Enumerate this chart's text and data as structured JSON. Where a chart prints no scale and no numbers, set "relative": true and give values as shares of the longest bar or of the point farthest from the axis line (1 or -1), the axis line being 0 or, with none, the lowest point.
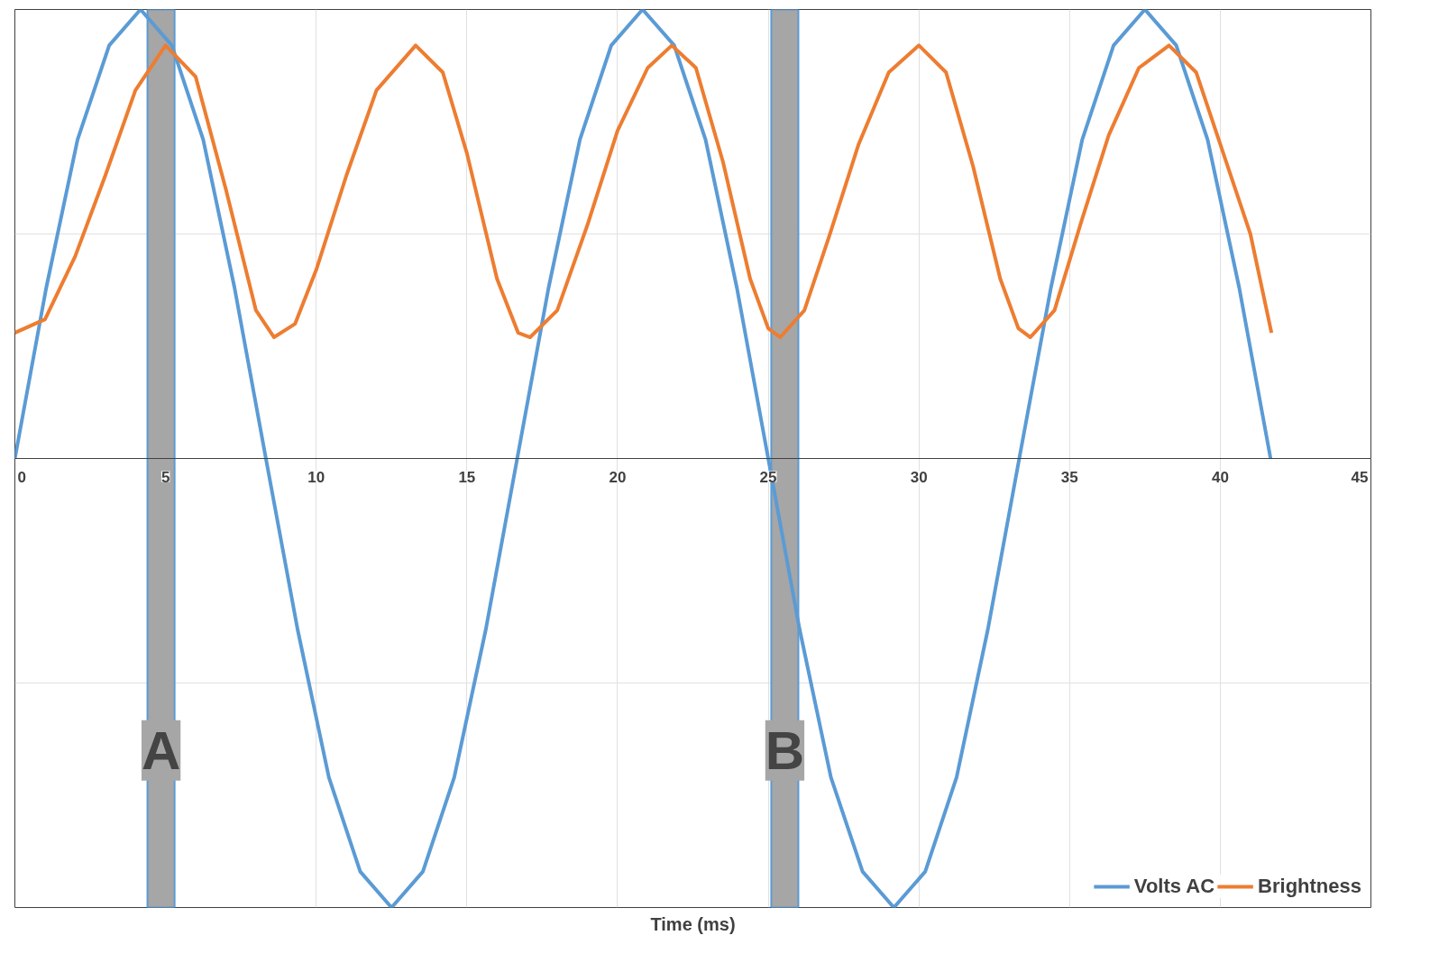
{
  "chart_data": {
    "type": "line",
    "relative": true,
    "xlabel": "Time (ms)",
    "xlim": [
      0,
      45
    ],
    "xticks": [
      0,
      5,
      10,
      15,
      20,
      25,
      30,
      35,
      40,
      45
    ],
    "grid": true,
    "legend": "bottom right",
    "line_style": "solid",
    "series": [
      {
        "name": "Volts AC",
        "color": "#5b9bd5",
        "x": [
          0,
          1.04,
          2.08,
          3.13,
          4.17,
          5.21,
          6.25,
          7.29,
          8.33,
          9.38,
          10.42,
          11.46,
          12.5,
          13.54,
          14.58,
          15.63,
          16.67,
          17.71,
          18.75,
          19.79,
          20.83,
          21.88,
          22.92,
          23.96,
          25,
          26.04,
          27.08,
          28.13,
          29.17,
          30.21,
          31.25,
          32.29,
          33.33,
          34.38,
          35.42,
          36.46,
          37.5,
          38.54,
          39.58,
          40.63,
          41.67
        ],
        "values": [
          0,
          0.38,
          0.71,
          0.92,
          1,
          0.92,
          0.71,
          0.38,
          0,
          -0.38,
          -0.71,
          -0.92,
          -1,
          -0.92,
          -0.71,
          -0.38,
          0,
          0.38,
          0.71,
          0.92,
          1,
          0.92,
          0.71,
          0.38,
          0,
          -0.38,
          -0.71,
          -0.92,
          -1,
          -0.92,
          -0.71,
          -0.38,
          0,
          0.38,
          0.71,
          0.92,
          1,
          0.92,
          0.71,
          0.38,
          0
        ]
      },
      {
        "name": "Brightness",
        "color": "#ed7d31",
        "x": [
          0,
          1,
          2,
          3,
          4,
          5,
          6,
          7,
          8,
          8.6,
          9.3,
          10,
          11,
          12,
          13.3,
          14.2,
          15,
          16,
          16.7,
          17.1,
          18,
          19,
          20,
          21,
          21.8,
          22.6,
          23.5,
          24.4,
          25,
          25.4,
          26.2,
          27,
          28,
          29,
          30,
          30.9,
          31.8,
          32.7,
          33.3,
          33.7,
          34.5,
          35.4,
          36.3,
          37.3,
          38.3,
          39.2,
          40,
          41,
          41.7
        ],
        "values": [
          0.28,
          0.31,
          0.45,
          0.63,
          0.82,
          0.92,
          0.85,
          0.6,
          0.33,
          0.27,
          0.3,
          0.42,
          0.63,
          0.82,
          0.92,
          0.86,
          0.68,
          0.4,
          0.28,
          0.27,
          0.33,
          0.52,
          0.73,
          0.87,
          0.92,
          0.87,
          0.66,
          0.4,
          0.29,
          0.27,
          0.33,
          0.49,
          0.7,
          0.86,
          0.92,
          0.86,
          0.65,
          0.4,
          0.29,
          0.27,
          0.33,
          0.53,
          0.72,
          0.87,
          0.92,
          0.86,
          0.7,
          0.5,
          0.28
        ]
      }
    ],
    "bands": [
      {
        "axis": "x",
        "from": 4.4,
        "to": 5.3,
        "label": "A",
        "color": "#a6a6a6"
      },
      {
        "axis": "x",
        "from": 25.1,
        "to": 26.0,
        "label": "B",
        "color": "#a6a6a6"
      }
    ]
  }
}
